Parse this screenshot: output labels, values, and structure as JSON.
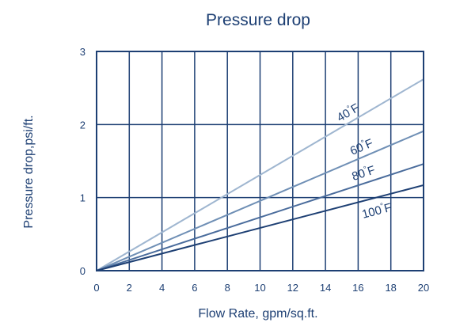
{
  "chart_data": {
    "type": "line",
    "title": "Pressure drop",
    "xlabel": "Flow Rate, gpm/sq.ft.",
    "ylabel": "Pressure drop,psi/ft.",
    "xlim": [
      0,
      20
    ],
    "ylim": [
      0,
      3
    ],
    "x_ticks": [
      "0",
      "2",
      "4",
      "6",
      "8",
      "10",
      "12",
      "14",
      "16",
      "18",
      "20"
    ],
    "y_ticks": [
      "0",
      "1",
      "2",
      "3"
    ],
    "grid": true,
    "series": [
      {
        "name": "40",
        "unit": "°F",
        "color": "#9fb6d0",
        "x": [
          0,
          20
        ],
        "y": [
          0,
          2.62
        ]
      },
      {
        "name": "60",
        "unit": "°F",
        "color": "#6f8fb5",
        "x": [
          0,
          20
        ],
        "y": [
          0,
          1.91
        ]
      },
      {
        "name": "80",
        "unit": "°F",
        "color": "#4a6c9c",
        "x": [
          0,
          20
        ],
        "y": [
          0,
          1.46
        ]
      },
      {
        "name": "100",
        "unit": "°F",
        "color": "#1d3f73",
        "x": [
          0,
          20
        ],
        "y": [
          0,
          1.17
        ]
      }
    ]
  },
  "colors": {
    "text": "#1d3f73",
    "grid": "#1d3f73"
  }
}
